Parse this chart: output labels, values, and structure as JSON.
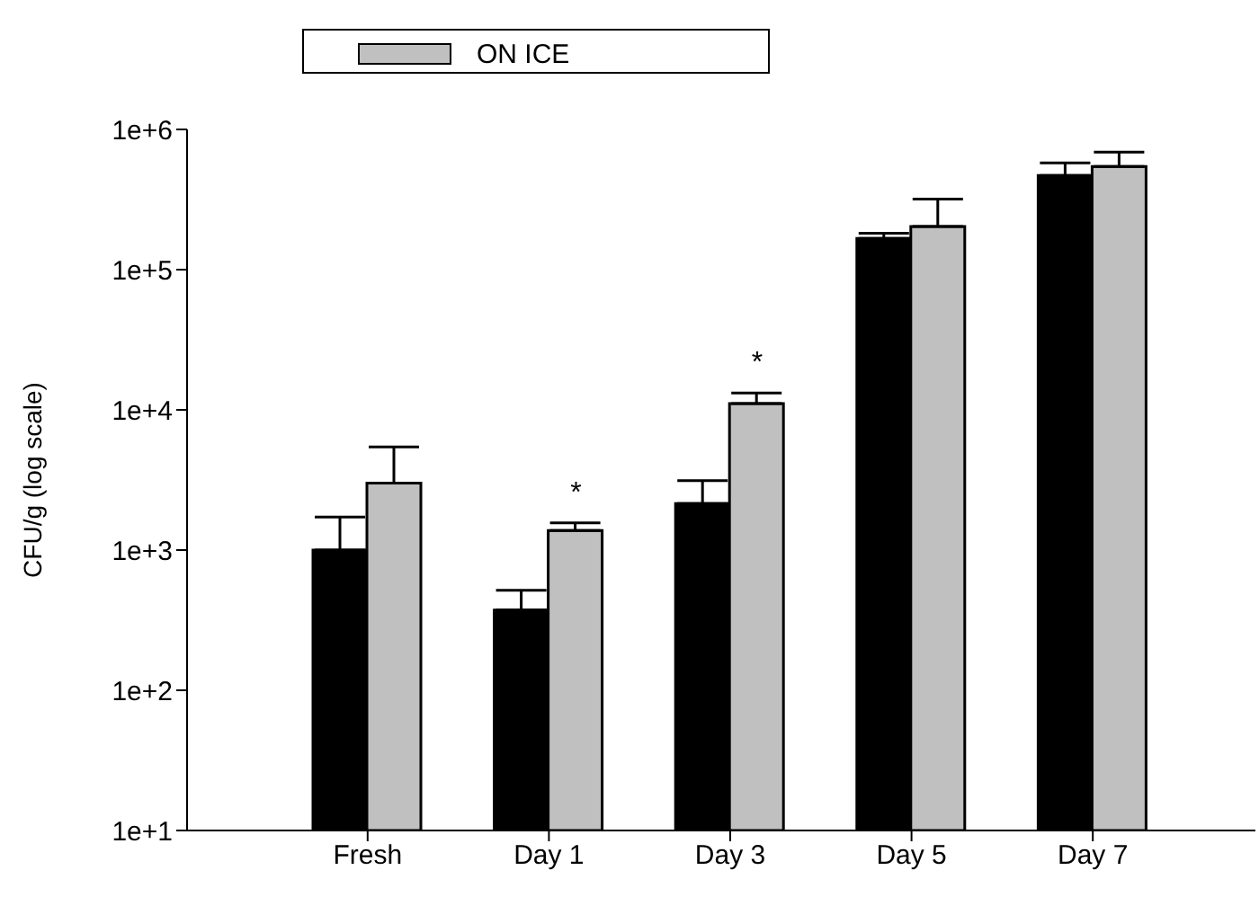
{
  "chart_data": {
    "type": "bar",
    "ylabel": "CFU/g (log scale)",
    "categories": [
      "Fresh",
      "Day 1",
      "Day 3",
      "Day 5",
      "Day 7"
    ],
    "series": [
      {
        "color": "#000000",
        "values": [
          1000,
          374,
          2150,
          167000,
          469000
        ],
        "errors": [
          [
            1000,
            1720
          ],
          [
            374,
            517
          ],
          [
            2150,
            3130
          ],
          [
            167000,
            182000
          ],
          [
            469000,
            577000
          ]
        ]
      },
      {
        "name": "ON ICE",
        "color": "#c0c0c0",
        "values": [
          3000,
          1380,
          11100,
          203000,
          543000
        ],
        "errors": [
          [
            3000,
            5430
          ],
          [
            1380,
            1560
          ],
          [
            11100,
            13200
          ],
          [
            203000,
            319000
          ],
          [
            543000,
            689000
          ]
        ]
      }
    ],
    "log": true,
    "ylim": [
      10,
      1000000
    ],
    "yticks": [
      {
        "value": 10,
        "label": "1e+1"
      },
      {
        "value": 100,
        "label": "1e+2"
      },
      {
        "value": 1000,
        "label": "1e+3"
      },
      {
        "value": 10000,
        "label": "1e+4"
      },
      {
        "value": 100000,
        "label": "1e+5"
      },
      {
        "value": 1000000,
        "label": "1e+6"
      }
    ],
    "annotations": [
      {
        "text": "*",
        "x": "Day 1",
        "y": 1560
      },
      {
        "text": "*",
        "x": "Day 3",
        "y": 13200
      }
    ],
    "legend": "top",
    "grid": false
  }
}
